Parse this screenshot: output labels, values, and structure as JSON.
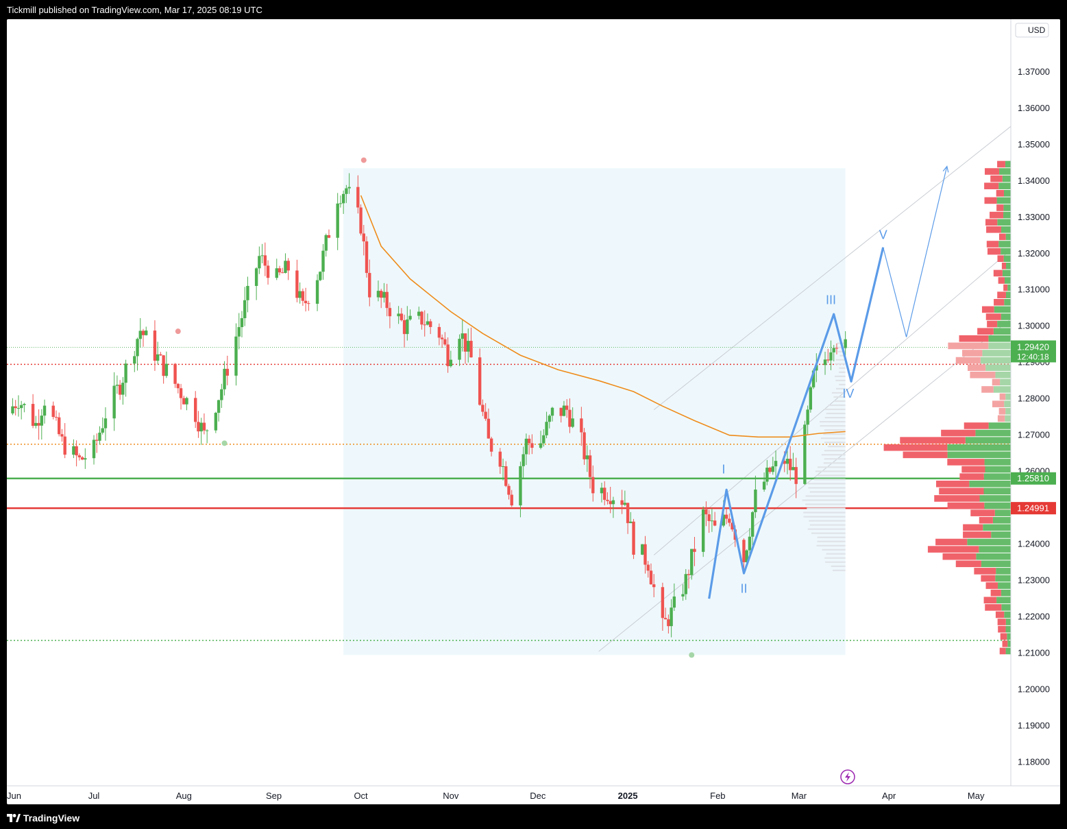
{
  "header": {
    "text": "Tickmill published on TradingView.com, Mar 17, 2025 08:19 UTC"
  },
  "footer": {
    "brand": "TradingView",
    "logo_icon": "tradingview-logo-icon"
  },
  "colors": {
    "up": "#4caf50",
    "down": "#ef5350",
    "ema": "#ef8b1a",
    "wave": "#5b9be8",
    "support": "#4caf50",
    "resistance": "#e53935",
    "shade": "#eef8fc"
  },
  "chart_data": {
    "type": "candlestick",
    "currency": "USD",
    "y_ticks": [
      1.37,
      1.36,
      1.35,
      1.34,
      1.33,
      1.32,
      1.31,
      1.3,
      1.29,
      1.28,
      1.27,
      1.26,
      1.25,
      1.24,
      1.23,
      1.22,
      1.21,
      1.2,
      1.19,
      1.18
    ],
    "ylim": [
      1.1735,
      1.3845
    ],
    "x_labels": [
      {
        "label": "Jun",
        "date": "2024-06-01",
        "bold": false
      },
      {
        "label": "Jul",
        "date": "2024-07-01",
        "bold": false
      },
      {
        "label": "Aug",
        "date": "2024-08-01",
        "bold": false
      },
      {
        "label": "Sep",
        "date": "2024-09-01",
        "bold": false
      },
      {
        "label": "Oct",
        "date": "2024-10-01",
        "bold": false
      },
      {
        "label": "Nov",
        "date": "2024-11-01",
        "bold": false
      },
      {
        "label": "Dec",
        "date": "2024-12-01",
        "bold": false
      },
      {
        "label": "2025",
        "date": "2025-01-01",
        "bold": true
      },
      {
        "label": "Feb",
        "date": "2025-02-01",
        "bold": false
      },
      {
        "label": "Mar",
        "date": "2025-03-01",
        "bold": false
      },
      {
        "label": "Apr",
        "date": "2025-04-01",
        "bold": false
      },
      {
        "label": "May",
        "date": "2025-05-01",
        "bold": false
      }
    ],
    "xlim": [
      "2024-06-01",
      "2025-05-13"
    ],
    "close_path": [
      [
        "2024-06-01",
        1.276
      ],
      [
        "2024-06-05",
        1.28
      ],
      [
        "2024-06-11",
        1.273
      ],
      [
        "2024-06-14",
        1.28
      ],
      [
        "2024-06-20",
        1.268
      ],
      [
        "2024-06-26",
        1.263
      ],
      [
        "2024-07-01",
        1.266
      ],
      [
        "2024-07-05",
        1.276
      ],
      [
        "2024-07-10",
        1.284
      ],
      [
        "2024-07-17",
        1.299
      ],
      [
        "2024-07-24",
        1.29
      ],
      [
        "2024-07-30",
        1.283
      ],
      [
        "2024-08-05",
        1.276
      ],
      [
        "2024-08-08",
        1.27
      ],
      [
        "2024-08-14",
        1.283
      ],
      [
        "2024-08-20",
        1.3
      ],
      [
        "2024-08-27",
        1.319
      ],
      [
        "2024-09-02",
        1.313
      ],
      [
        "2024-09-06",
        1.316
      ],
      [
        "2024-09-11",
        1.305
      ],
      [
        "2024-09-17",
        1.316
      ],
      [
        "2024-09-23",
        1.336
      ],
      [
        "2024-09-26",
        1.338
      ],
      [
        "2024-10-01",
        1.328
      ],
      [
        "2024-10-04",
        1.31
      ],
      [
        "2024-10-10",
        1.306
      ],
      [
        "2024-10-16",
        1.3
      ],
      [
        "2024-10-22",
        1.302
      ],
      [
        "2024-10-28",
        1.298
      ],
      [
        "2024-10-31",
        1.292
      ],
      [
        "2024-11-04",
        1.299
      ],
      [
        "2024-11-08",
        1.291
      ],
      [
        "2024-11-14",
        1.268
      ],
      [
        "2024-11-18",
        1.264
      ],
      [
        "2024-11-22",
        1.253
      ],
      [
        "2024-11-27",
        1.268
      ],
      [
        "2024-12-02",
        1.268
      ],
      [
        "2024-12-06",
        1.276
      ],
      [
        "2024-12-11",
        1.277
      ],
      [
        "2024-12-16",
        1.268
      ],
      [
        "2024-12-20",
        1.256
      ],
      [
        "2024-12-26",
        1.254
      ],
      [
        "2024-12-31",
        1.252
      ],
      [
        "2025-01-03",
        1.24
      ],
      [
        "2025-01-08",
        1.235
      ],
      [
        "2025-01-13",
        1.217
      ],
      [
        "2025-01-16",
        1.221
      ],
      [
        "2025-01-21",
        1.23
      ],
      [
        "2025-01-27",
        1.248
      ],
      [
        "2025-01-31",
        1.244
      ],
      [
        "2025-02-05",
        1.248
      ],
      [
        "2025-02-10",
        1.236
      ],
      [
        "2025-02-14",
        1.253
      ],
      [
        "2025-02-19",
        1.26
      ],
      [
        "2025-02-24",
        1.263
      ],
      [
        "2025-02-28",
        1.259
      ],
      [
        "2025-03-03",
        1.27
      ],
      [
        "2025-03-06",
        1.286
      ],
      [
        "2025-03-10",
        1.291
      ],
      [
        "2025-03-13",
        1.297
      ],
      [
        "2025-03-17",
        1.294
      ]
    ],
    "ema_path": [
      [
        "2024-10-01",
        1.336
      ],
      [
        "2024-10-08",
        1.322
      ],
      [
        "2024-10-18",
        1.313
      ],
      [
        "2024-11-01",
        1.304
      ],
      [
        "2024-11-12",
        1.298
      ],
      [
        "2024-11-25",
        1.292
      ],
      [
        "2024-12-08",
        1.288
      ],
      [
        "2024-12-22",
        1.285
      ],
      [
        "2025-01-03",
        1.282
      ],
      [
        "2025-01-13",
        1.278
      ],
      [
        "2025-01-24",
        1.274
      ],
      [
        "2025-02-05",
        1.27
      ],
      [
        "2025-02-15",
        1.2695
      ],
      [
        "2025-02-26",
        1.2695
      ],
      [
        "2025-03-08",
        1.2705
      ],
      [
        "2025-03-17",
        1.271
      ]
    ],
    "price_lines": [
      {
        "price": 1.2581,
        "label": "1.25810",
        "style": "solid",
        "color": "#4caf50"
      },
      {
        "price": 1.24991,
        "label": "1.24991",
        "style": "solid",
        "color": "#e53935"
      },
      {
        "price": 1.2895,
        "style": "dotted",
        "color": "#e53935"
      },
      {
        "price": 1.2675,
        "style": "dotted",
        "color": "#ef8b1a"
      },
      {
        "price": 1.2135,
        "style": "dotted",
        "color": "#4caf50"
      }
    ],
    "last_price": {
      "price": 1.2942,
      "label": "1.29420",
      "countdown": "12:40:18"
    },
    "shaded_range": {
      "from": "2024-09-25",
      "to": "2025-03-17",
      "top": 1.3435,
      "bottom": 1.2095
    },
    "wave_labels": [
      {
        "label": "I",
        "date": "2025-02-03",
        "price": 1.2595
      },
      {
        "label": "II",
        "date": "2025-02-10",
        "price": 1.2266
      },
      {
        "label": "III",
        "date": "2025-03-12",
        "price": 1.3061
      },
      {
        "label": "IV",
        "date": "2025-03-18",
        "price": 1.2803
      },
      {
        "label": "V",
        "date": "2025-03-30",
        "price": 1.324
      }
    ],
    "wave_path": [
      [
        "2025-01-29",
        1.225
      ],
      [
        "2025-02-04",
        1.255
      ],
      [
        "2025-02-10",
        1.232
      ],
      [
        "2025-03-13",
        1.3033
      ],
      [
        "2025-03-19",
        1.2848
      ],
      [
        "2025-03-30",
        1.3217
      ]
    ],
    "projection_path": [
      [
        "2025-03-30",
        1.3217
      ],
      [
        "2025-04-07",
        1.297
      ],
      [
        "2025-04-21",
        1.344
      ]
    ],
    "channels": [
      [
        [
          "2024-12-22",
          1.2105
        ],
        [
          "2025-05-13",
          1.302
        ]
      ],
      [
        [
          "2025-01-10",
          1.237
        ],
        [
          "2025-05-13",
          1.321
        ]
      ],
      [
        [
          "2025-01-10",
          1.277
        ],
        [
          "2025-05-13",
          1.355
        ]
      ]
    ],
    "pivot_dots": [
      {
        "date": "2024-10-02",
        "price": 1.3457,
        "color": "#ef9a9a"
      },
      {
        "date": "2024-07-30",
        "price": 1.2986,
        "color": "#ef9a9a"
      },
      {
        "date": "2024-08-15",
        "price": 1.2678,
        "color": "#a5d6a7"
      },
      {
        "date": "2025-01-23",
        "price": 1.2095,
        "color": "#a5d6a7"
      }
    ]
  }
}
